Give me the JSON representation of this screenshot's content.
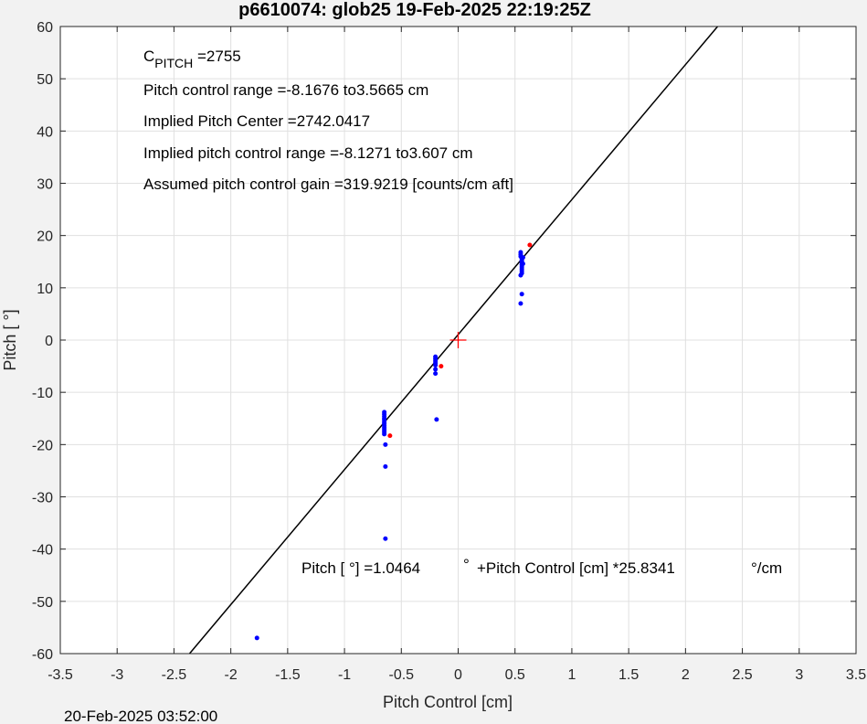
{
  "footer": {
    "timestamp": "20-Feb-2025 03:52:00"
  },
  "chart_data": {
    "type": "scatter",
    "title": "p6610074: glob25 19-Feb-2025 22:19:25Z",
    "xlabel": "Pitch Control [cm]",
    "ylabel": "Pitch [ °]",
    "xlim": [
      -3.5,
      3.5
    ],
    "ylim": [
      -60,
      60
    ],
    "xticks": [
      -3.5,
      -3,
      -2.5,
      -2,
      -1.5,
      -1,
      -0.5,
      0,
      0.5,
      1,
      1.5,
      2,
      2.5,
      3,
      3.5
    ],
    "yticks": [
      -60,
      -50,
      -40,
      -30,
      -20,
      -10,
      0,
      10,
      20,
      30,
      40,
      50,
      60
    ],
    "xtick_labels": [
      "-3.5",
      "-3",
      "-2.5",
      "-2",
      "-1.5",
      "-1",
      "-0.5",
      "0",
      "0.5",
      "1",
      "1.5",
      "2",
      "2.5",
      "3",
      "3.5"
    ],
    "ytick_labels": [
      "-60",
      "-50",
      "-40",
      "-30",
      "-20",
      "-10",
      "0",
      "10",
      "20",
      "30",
      "40",
      "50",
      "60"
    ],
    "grid": true,
    "annotations": {
      "c_pitch_main": "C",
      "c_pitch_sub": "PITCH",
      "c_pitch_value": " =2755",
      "range": "Pitch control range =-8.1676 to3.5665 cm",
      "center": "Implied Pitch Center =2742.0417",
      "implied_range": "Implied pitch control range =-8.1271 to3.607 cm",
      "gain": "Assumed pitch control gain =319.9219 [counts/cm aft]",
      "fit_prefix": "Pitch [  °] =1.0464",
      "fit_deg": "°",
      "fit_middle": "+Pitch Control [cm] *25.8341",
      "fit_unit": "°/cm"
    },
    "fit_line": {
      "intercept": 1.0464,
      "slope": 25.8341,
      "color": "#000000"
    },
    "center_marker": {
      "x": 0,
      "y": 0,
      "color": "#ff0000"
    },
    "series": [
      {
        "color": "#0000ff",
        "points": [
          [
            -0.65,
            -13.8
          ],
          [
            -0.65,
            -14.2
          ],
          [
            -0.65,
            -14.6
          ],
          [
            -0.65,
            -15.0
          ],
          [
            -0.65,
            -15.3
          ],
          [
            -0.65,
            -15.7
          ],
          [
            -0.65,
            -16.0
          ],
          [
            -0.65,
            -16.4
          ],
          [
            -0.65,
            -16.8
          ],
          [
            -0.65,
            -17.2
          ],
          [
            -0.65,
            -17.6
          ],
          [
            -0.65,
            -18.0
          ],
          [
            -0.64,
            -20.0
          ],
          [
            -0.64,
            -24.2
          ],
          [
            -0.64,
            -38.0
          ],
          [
            -0.2,
            -3.2
          ],
          [
            -0.2,
            -3.6
          ],
          [
            -0.2,
            -4.0
          ],
          [
            -0.2,
            -4.4
          ],
          [
            -0.2,
            -4.8
          ],
          [
            -0.2,
            -5.6
          ],
          [
            -0.2,
            -6.4
          ],
          [
            -0.19,
            -15.2
          ],
          [
            0.55,
            16.8
          ],
          [
            0.55,
            16.4
          ],
          [
            0.55,
            16.0
          ],
          [
            0.56,
            15.6
          ],
          [
            0.56,
            15.2
          ],
          [
            0.56,
            14.8
          ],
          [
            0.56,
            14.4
          ],
          [
            0.56,
            14.0
          ],
          [
            0.56,
            13.6
          ],
          [
            0.56,
            13.2
          ],
          [
            0.56,
            12.8
          ],
          [
            0.55,
            12.4
          ],
          [
            0.57,
            15.8
          ],
          [
            0.57,
            14.6
          ],
          [
            0.56,
            8.8
          ],
          [
            0.55,
            7.0
          ],
          [
            -1.77,
            -57.0
          ]
        ]
      },
      {
        "color": "#ff0000",
        "points": [
          [
            0.63,
            18.2
          ],
          [
            -0.6,
            -18.3
          ],
          [
            -0.15,
            -5.0
          ]
        ]
      }
    ]
  }
}
